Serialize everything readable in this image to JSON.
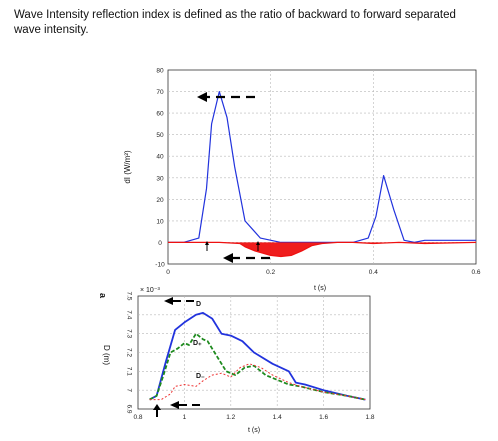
{
  "caption": "Wave Intensity reflection index is defined as the ratio of backward to forward separated wave intensity.",
  "colors": {
    "forward": "#2233dd",
    "backward": "#ee1111",
    "series_d": "#2233dd",
    "series_dplus": "#1e8a1e",
    "series_dminus": "#ee3333",
    "grid": "#b8b8b8",
    "axis": "#333333",
    "arrow": "#000000"
  },
  "chart_data": [
    {
      "type": "line",
      "ylabel": "dI (W/m²)",
      "xlabel": "t (s)",
      "xlim": [
        0,
        0.6
      ],
      "ylim": [
        -10,
        80
      ],
      "xticks": [
        0,
        0.2,
        0.4,
        0.6
      ],
      "yticks": [
        -10,
        0,
        10,
        20,
        30,
        40,
        50,
        60,
        70,
        80
      ],
      "grid": true,
      "series": [
        {
          "key": "forward",
          "x": [
            0,
            0.03,
            0.06,
            0.075,
            0.085,
            0.1,
            0.115,
            0.13,
            0.15,
            0.18,
            0.22,
            0.26,
            0.3,
            0.33,
            0.36,
            0.39,
            0.405,
            0.42,
            0.44,
            0.46,
            0.48,
            0.5,
            0.55,
            0.6
          ],
          "y": [
            0,
            0,
            2,
            25,
            55,
            70,
            58,
            35,
            10,
            2,
            0,
            0,
            0,
            0,
            0,
            2,
            12,
            31,
            15,
            1,
            0,
            1,
            1,
            1
          ]
        },
        {
          "key": "backward",
          "x": [
            0,
            0.1,
            0.14,
            0.15,
            0.17,
            0.2,
            0.22,
            0.24,
            0.26,
            0.28,
            0.3,
            0.33,
            0.36,
            0.4,
            0.45,
            0.5,
            0.6
          ],
          "y": [
            0,
            0,
            -0.5,
            -2,
            -4,
            -6,
            -6.5,
            -6,
            -4,
            -1.5,
            -0.5,
            0,
            0,
            -0.5,
            0,
            -0.5,
            0
          ]
        }
      ]
    },
    {
      "type": "line",
      "ylabel": "D (m)",
      "xlabel": "t (s)",
      "yscale_label": "× 10⁻³",
      "xlim": [
        0.8,
        1.8
      ],
      "ylim": [
        6.9,
        7.5
      ],
      "xticks": [
        0.8,
        1,
        1.2,
        1.4,
        1.6,
        1.8
      ],
      "yticks": [
        6.9,
        7,
        7.1,
        7.2,
        7.3,
        7.4,
        7.5
      ],
      "grid": true,
      "series": [
        {
          "key": "D",
          "x": [
            0.85,
            0.88,
            0.92,
            0.96,
            1.0,
            1.05,
            1.08,
            1.12,
            1.16,
            1.2,
            1.25,
            1.3,
            1.38,
            1.45,
            1.48,
            1.52,
            1.6,
            1.7,
            1.78
          ],
          "y": [
            6.95,
            6.97,
            7.15,
            7.32,
            7.36,
            7.4,
            7.41,
            7.38,
            7.3,
            7.29,
            7.26,
            7.2,
            7.14,
            7.1,
            7.04,
            7.03,
            7.0,
            6.97,
            6.95
          ]
        },
        {
          "key": "D+",
          "x": [
            0.85,
            0.88,
            0.91,
            0.94,
            0.97,
            1.0,
            1.02,
            1.05,
            1.08,
            1.1,
            1.14,
            1.18,
            1.22,
            1.26,
            1.3,
            1.35,
            1.45,
            1.5,
            1.6,
            1.7,
            1.78
          ],
          "y": [
            6.95,
            6.97,
            7.08,
            7.2,
            7.22,
            7.25,
            7.24,
            7.3,
            7.27,
            7.26,
            7.18,
            7.1,
            7.08,
            7.12,
            7.13,
            7.08,
            7.03,
            7.02,
            6.99,
            6.97,
            6.95
          ]
        },
        {
          "key": "D-",
          "x": [
            0.85,
            0.9,
            0.94,
            0.96,
            1.0,
            1.05,
            1.08,
            1.12,
            1.16,
            1.2,
            1.24,
            1.28,
            1.33,
            1.38,
            1.45,
            1.5,
            1.6,
            1.7,
            1.78
          ],
          "y": [
            6.95,
            6.95,
            6.98,
            7.02,
            7.03,
            7.02,
            7.05,
            7.08,
            7.09,
            7.07,
            7.12,
            7.14,
            7.12,
            7.08,
            7.04,
            7.02,
            6.99,
            6.97,
            6.95
          ]
        }
      ],
      "annotations": [
        "D",
        "D₊",
        "D₋"
      ]
    }
  ],
  "panel_label": "a"
}
